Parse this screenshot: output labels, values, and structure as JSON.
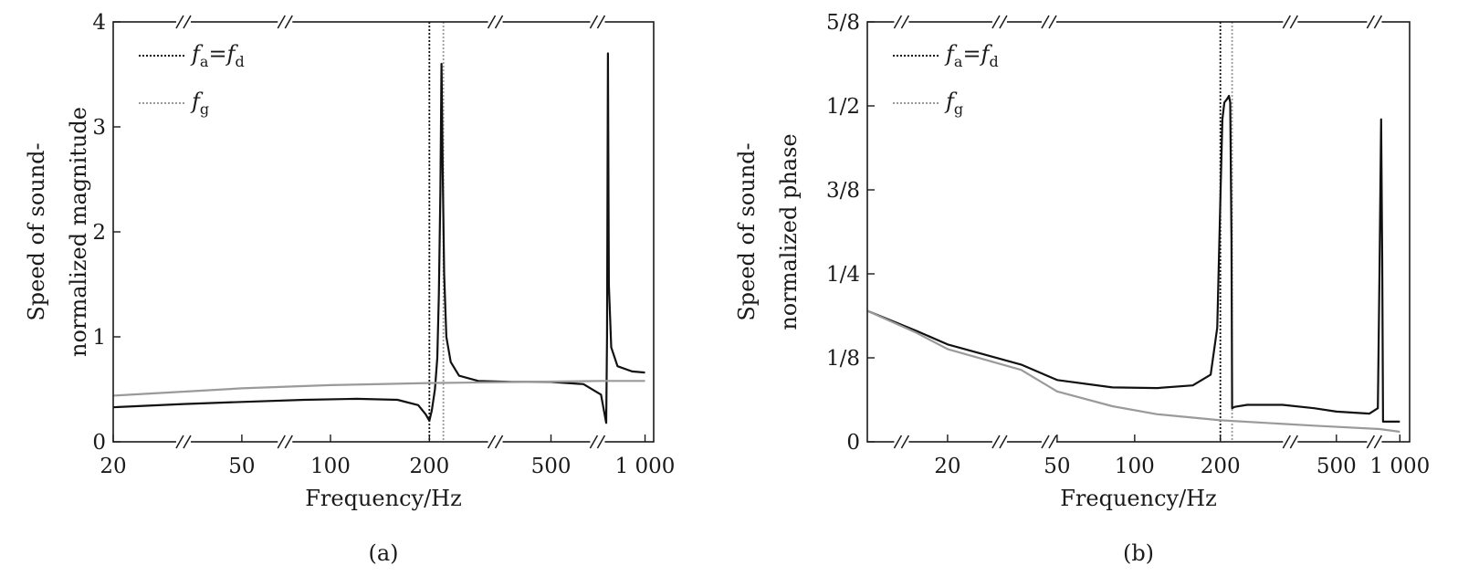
{
  "chart_data": [
    {
      "type": "line",
      "caption": "(a)",
      "xlabel": "Frequency/Hz",
      "ylabel": [
        "Speed of sound-",
        "normalized magnitude"
      ],
      "x_scale": "broken-log",
      "xlim": [
        20,
        1050
      ],
      "ylim": [
        0,
        4
      ],
      "x_ticks": [
        {
          "value": 20,
          "label": "20"
        },
        {
          "value": 50,
          "label": "50"
        },
        {
          "value": 100,
          "label": "100"
        },
        {
          "value": 200,
          "label": "200"
        },
        {
          "value": 500,
          "label": "500"
        },
        {
          "value": 1000,
          "label": "1 000"
        }
      ],
      "y_ticks": [
        {
          "value": 0,
          "label": "0"
        },
        {
          "value": 1,
          "label": "1"
        },
        {
          "value": 2,
          "label": "2"
        },
        {
          "value": 3,
          "label": "3"
        },
        {
          "value": 4,
          "label": "4"
        }
      ],
      "axis_breaks": [
        30,
        68,
        300,
        680
      ],
      "legend": [
        {
          "symbol": "f",
          "sub": "a",
          "mid": "=",
          "symbol2": "f",
          "sub2": "d",
          "style": "dotted",
          "color": "#111111"
        },
        {
          "symbol": "f",
          "sub": "g",
          "style": "dotted",
          "color": "#9a9a9a"
        }
      ],
      "vlines": [
        {
          "x": 200,
          "color": "#111111"
        },
        {
          "x": 218,
          "color": "#9a9a9a"
        }
      ],
      "series": [
        {
          "color": "#111111",
          "points": [
            [
              20,
              0.33
            ],
            [
              30,
              0.36
            ],
            [
              50,
              0.38
            ],
            [
              80,
              0.4
            ],
            [
              120,
              0.41
            ],
            [
              160,
              0.4
            ],
            [
              185,
              0.35
            ],
            [
              195,
              0.26
            ],
            [
              200,
              0.2
            ],
            [
              203,
              0.3
            ],
            [
              207,
              0.5
            ],
            [
              210,
              0.8
            ],
            [
              212,
              1.4
            ],
            [
              214,
              2.4
            ],
            [
              215.5,
              3.6
            ],
            [
              217,
              2.6
            ],
            [
              219,
              1.6
            ],
            [
              222,
              1.0
            ],
            [
              228,
              0.76
            ],
            [
              240,
              0.63
            ],
            [
              270,
              0.58
            ],
            [
              350,
              0.57
            ],
            [
              500,
              0.57
            ],
            [
              620,
              0.55
            ],
            [
              700,
              0.45
            ],
            [
              730,
              0.18
            ],
            [
              735,
              1.0
            ],
            [
              740,
              3.7
            ],
            [
              746,
              1.5
            ],
            [
              760,
              0.9
            ],
            [
              800,
              0.72
            ],
            [
              900,
              0.67
            ],
            [
              1000,
              0.66
            ]
          ]
        },
        {
          "color": "#9a9a9a",
          "points": [
            [
              20,
              0.44
            ],
            [
              50,
              0.51
            ],
            [
              100,
              0.54
            ],
            [
              200,
              0.56
            ],
            [
              400,
              0.57
            ],
            [
              700,
              0.58
            ],
            [
              1000,
              0.58
            ]
          ]
        }
      ]
    },
    {
      "type": "line",
      "caption": "(b)",
      "xlabel": "Frequency/Hz",
      "ylabel": [
        "Speed of sound-",
        "normalized phase"
      ],
      "x_scale": "broken-log",
      "xlim": [
        10,
        1000
      ],
      "ylim": [
        0,
        0.625
      ],
      "x_ticks": [
        {
          "value": 20,
          "label": "20"
        },
        {
          "value": 50,
          "label": "50"
        },
        {
          "value": 100,
          "label": "100"
        },
        {
          "value": 200,
          "label": "200"
        },
        {
          "value": 500,
          "label": "500"
        },
        {
          "value": 1000,
          "label": "1 000"
        }
      ],
      "y_ticks": [
        {
          "value": 0,
          "label": "0"
        },
        {
          "value": 0.125,
          "label": "1/8"
        },
        {
          "value": 0.25,
          "label": "1/4"
        },
        {
          "value": 0.375,
          "label": "3/8"
        },
        {
          "value": 0.5,
          "label": "1/2"
        },
        {
          "value": 0.625,
          "label": "5/8"
        }
      ],
      "axis_breaks": [
        13,
        25,
        38,
        315,
        640
      ],
      "legend": [
        {
          "symbol": "f",
          "sub": "a",
          "mid": "=",
          "symbol2": "f",
          "sub2": "d",
          "style": "dotted",
          "color": "#111111"
        },
        {
          "symbol": "f",
          "sub": "g",
          "style": "dotted",
          "color": "#9a9a9a"
        }
      ],
      "vlines": [
        {
          "x": 200,
          "color": "#111111"
        },
        {
          "x": 218,
          "color": "#9a9a9a"
        }
      ],
      "series": [
        {
          "color": "#111111",
          "points": [
            [
              10,
              0.195
            ],
            [
              15,
              0.165
            ],
            [
              20,
              0.145
            ],
            [
              30,
              0.115
            ],
            [
              50,
              0.092
            ],
            [
              80,
              0.081
            ],
            [
              120,
              0.08
            ],
            [
              160,
              0.084
            ],
            [
              185,
              0.1
            ],
            [
              195,
              0.17
            ],
            [
              200,
              0.36
            ],
            [
              203,
              0.48
            ],
            [
              206,
              0.505
            ],
            [
              210,
              0.51
            ],
            [
              213,
              0.515
            ],
            [
              215,
              0.505
            ],
            [
              217,
              0.3
            ],
            [
              218,
              0.05
            ],
            [
              222,
              0.052
            ],
            [
              240,
              0.055
            ],
            [
              300,
              0.055
            ],
            [
              400,
              0.05
            ],
            [
              500,
              0.045
            ],
            [
              620,
              0.042
            ],
            [
              680,
              0.05
            ],
            [
              700,
              0.25
            ],
            [
              720,
              0.48
            ],
            [
              735,
              0.27
            ],
            [
              745,
              0.03
            ],
            [
              800,
              0.03
            ],
            [
              1000,
              0.03
            ]
          ]
        },
        {
          "color": "#9a9a9a",
          "points": [
            [
              10,
              0.195
            ],
            [
              15,
              0.162
            ],
            [
              20,
              0.138
            ],
            [
              30,
              0.107
            ],
            [
              50,
              0.075
            ],
            [
              80,
              0.053
            ],
            [
              120,
              0.041
            ],
            [
              200,
              0.032
            ],
            [
              400,
              0.024
            ],
            [
              700,
              0.019
            ],
            [
              1000,
              0.015
            ]
          ]
        }
      ]
    }
  ]
}
